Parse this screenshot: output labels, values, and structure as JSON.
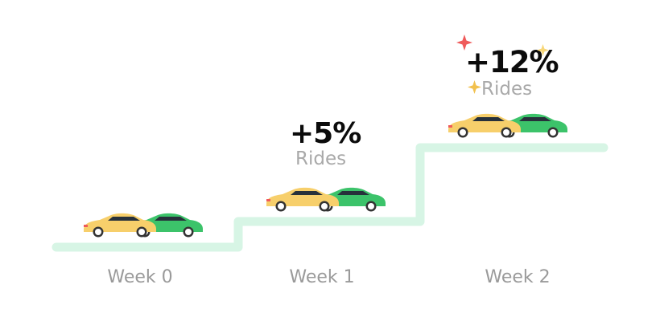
{
  "steps": [
    {
      "week_label": "Week 0",
      "change": "",
      "metric": ""
    },
    {
      "week_label": "Week 1",
      "change": "+5%",
      "metric": "Rides"
    },
    {
      "week_label": "Week 2",
      "change": "+12%",
      "metric": "Rides"
    }
  ],
  "colors": {
    "step_line": "#d7f5e5",
    "car_green": "#3cc36a",
    "car_yellow": "#f7cf6b",
    "sparkle_red": "#ef5a5a",
    "sparkle_gold": "#f2c14e",
    "label_gray": "#9a9a9a"
  },
  "icons": [
    "car-yellow-icon",
    "car-green-icon",
    "sparkle-icon"
  ]
}
